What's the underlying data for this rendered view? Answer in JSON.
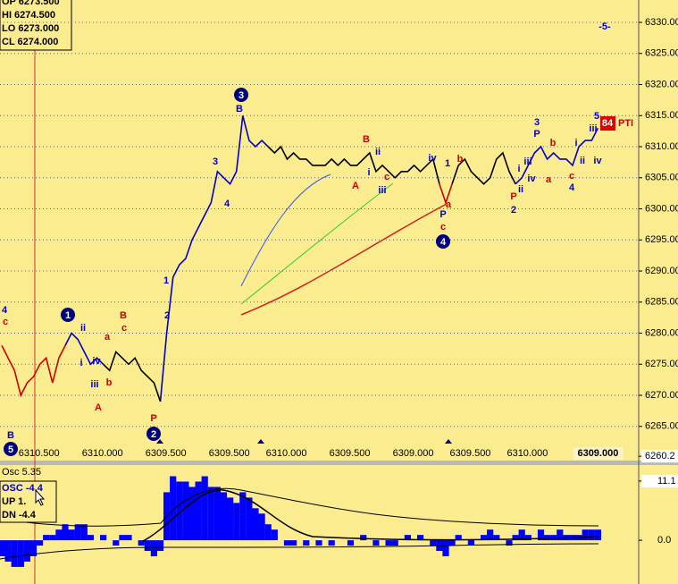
{
  "chart_data": [
    {
      "type": "line",
      "categories": [
        null,
        null,
        null,
        null,
        null,
        null,
        null,
        "6310.500",
        null,
        null,
        null,
        null,
        null,
        null,
        null,
        null,
        null,
        "6310.000",
        null,
        null,
        null,
        null,
        null,
        null,
        null,
        null,
        null,
        "6309.500",
        null,
        null,
        null,
        null,
        null,
        null,
        null,
        null,
        null,
        "6309.500",
        null,
        null,
        null,
        null,
        null,
        null,
        null,
        null,
        "6310.000",
        null,
        null,
        null,
        null,
        null,
        null,
        null,
        null,
        null,
        "6309.500",
        null,
        null,
        null,
        null,
        null,
        null,
        null,
        null,
        null,
        "6309.000",
        null,
        null,
        null,
        null,
        null,
        null,
        null,
        null,
        "6309.500",
        null,
        null,
        null,
        null,
        null,
        null,
        null,
        null,
        "6310.000",
        null,
        null,
        null,
        null,
        null,
        null,
        null,
        null,
        null,
        "6309.000"
      ],
      "series": [
        {
          "color": "#cc0000",
          "values": [
            6278,
            6276,
            6274,
            6270,
            6272,
            6273,
            6275,
            6276,
            6272,
            6276,
            6278,
            null,
            null,
            null,
            null,
            null,
            null,
            null,
            null,
            null,
            null,
            null,
            null,
            null,
            null,
            null,
            null,
            null,
            null,
            null,
            null,
            null,
            null,
            null,
            null,
            null,
            null,
            null,
            null,
            null,
            null,
            null,
            null,
            null,
            null,
            null,
            null,
            null,
            null,
            null,
            null,
            null,
            null,
            null,
            null,
            null,
            null,
            null,
            null,
            null,
            null,
            null,
            null,
            null,
            null,
            null,
            null,
            null,
            null,
            6304,
            6301,
            6304,
            null,
            null,
            null,
            null,
            null,
            null,
            null,
            null,
            null,
            null,
            null,
            null,
            null,
            null,
            null,
            null,
            null,
            null,
            null,
            null,
            null,
            null,
            null
          ]
        },
        {
          "color": "#0000cc",
          "values": [
            null,
            null,
            null,
            null,
            null,
            null,
            null,
            null,
            null,
            null,
            6278,
            6280,
            6279,
            6277,
            6275,
            6276,
            6275,
            null,
            null,
            null,
            null,
            null,
            null,
            null,
            null,
            6269,
            6280,
            6289,
            6291,
            6292,
            6295,
            6297,
            6299,
            6301,
            6306,
            6305,
            6304,
            6306,
            6315,
            6311,
            6310,
            6311,
            6310,
            null,
            null,
            null,
            null,
            null,
            null,
            null,
            null,
            null,
            null,
            null,
            null,
            null,
            null,
            null,
            null,
            null,
            null,
            null,
            null,
            null,
            null,
            null,
            null,
            null,
            null,
            null,
            null,
            null,
            null,
            null,
            null,
            null,
            null,
            null,
            null,
            null,
            null,
            6304,
            6305,
            6307,
            6309,
            6310,
            6308,
            6309,
            6308,
            6308,
            6307,
            6310,
            6311,
            6311,
            6313
          ]
        },
        {
          "color": "#000000",
          "values": [
            null,
            null,
            null,
            null,
            null,
            null,
            null,
            null,
            null,
            null,
            null,
            null,
            null,
            null,
            null,
            null,
            6275,
            6274,
            6277,
            6276,
            6275,
            6276,
            6274,
            6273,
            6272,
            6269,
            null,
            null,
            null,
            null,
            null,
            null,
            null,
            null,
            null,
            null,
            null,
            null,
            null,
            null,
            null,
            null,
            6310,
            6309,
            6310,
            6308,
            6309,
            6308,
            6308,
            6307,
            6307,
            6307,
            6308,
            6307,
            6308,
            6307,
            6307,
            6308,
            6309,
            6306,
            6307,
            6306,
            6305,
            6306,
            6306,
            6307,
            6306,
            6307,
            6308,
            6304,
            null,
            6304,
            6307,
            6308,
            6306,
            6305,
            6304,
            6305,
            6308,
            6309,
            6306,
            6304,
            null,
            null,
            null,
            null,
            null,
            null,
            null,
            null,
            null,
            null,
            null,
            null,
            null
          ]
        }
      ],
      "ylim": [
        6259.5,
        6333.6
      ],
      "yticks": [
        {
          "value": 6265,
          "label": "6265.00"
        },
        {
          "value": 6270,
          "label": "6270.00"
        },
        {
          "value": 6275,
          "label": "6275.00"
        },
        {
          "value": 6280,
          "label": "6280.00"
        },
        {
          "value": 6285,
          "label": "6285.00"
        },
        {
          "value": 6290,
          "label": "6290.00"
        },
        {
          "value": 6295,
          "label": "6295.00"
        },
        {
          "value": 6300,
          "label": "6300.00"
        },
        {
          "value": 6305,
          "label": "6305.00"
        },
        {
          "value": 6310,
          "label": "6310.00"
        },
        {
          "value": 6315,
          "label": "6315.00"
        },
        {
          "value": 6320,
          "label": "6320.00"
        },
        {
          "value": 6325,
          "label": "6325.00"
        },
        {
          "value": 6330,
          "label": "6330.00"
        },
        6260.2
      ],
      "grid": true,
      "info_box": [
        "OP 6273.500",
        "HI 6274.500",
        "LO 6273.000",
        "CL 6274.000"
      ],
      "badge": "84",
      "badge_label": "PTI",
      "wave_markers": [
        "1",
        "2",
        "3",
        "4",
        "5"
      ],
      "annotations": [
        {
          "text": "4",
          "color": "#0000cc"
        },
        {
          "text": "c",
          "color": "#cc0000"
        },
        {
          "text": "B",
          "color": "#0000cc"
        },
        {
          "text": "ii",
          "color": "#0000cc"
        },
        {
          "text": "i",
          "color": "#0000cc"
        },
        {
          "text": "iv",
          "color": "#0000cc"
        },
        {
          "text": "iii",
          "color": "#0000cc"
        },
        {
          "text": "a",
          "color": "#cc0000"
        },
        {
          "text": "B",
          "color": "#cc0000"
        },
        {
          "text": "c",
          "color": "#cc0000"
        },
        {
          "text": "b",
          "color": "#cc0000"
        },
        {
          "text": "A",
          "color": "#cc0000"
        },
        {
          "text": "P",
          "color": "#cc0000"
        },
        {
          "text": "1",
          "color": "#0000cc"
        },
        {
          "text": "2",
          "color": "#0000cc"
        },
        {
          "text": "3",
          "color": "#0000cc"
        },
        {
          "text": "4",
          "color": "#0000cc"
        },
        {
          "text": "B",
          "color": "#0000cc"
        },
        {
          "text": "B",
          "color": "#cc0000"
        },
        {
          "text": "ii",
          "color": "#0000cc"
        },
        {
          "text": "i",
          "color": "#0000cc"
        },
        {
          "text": "A",
          "color": "#cc0000"
        },
        {
          "text": "iii",
          "color": "#0000cc"
        },
        {
          "text": "c",
          "color": "#cc0000"
        },
        {
          "text": "iv",
          "color": "#0000cc"
        },
        {
          "text": "1",
          "color": "#0000cc"
        },
        {
          "text": "b",
          "color": "#cc0000"
        },
        {
          "text": "P",
          "color": "#0000cc"
        },
        {
          "text": "a",
          "color": "#cc0000"
        },
        {
          "text": "c",
          "color": "#cc0000"
        },
        {
          "text": "P",
          "color": "#cc0000"
        },
        {
          "text": "2",
          "color": "#0000cc"
        },
        {
          "text": "i",
          "color": "#0000cc"
        },
        {
          "text": "ii",
          "color": "#0000cc"
        },
        {
          "text": "iii",
          "color": "#0000cc"
        },
        {
          "text": "iv",
          "color": "#0000cc"
        },
        {
          "text": "3",
          "color": "#0000cc"
        },
        {
          "text": "P",
          "color": "#0000cc"
        },
        {
          "text": "b",
          "color": "#cc0000"
        },
        {
          "text": "a",
          "color": "#cc0000"
        },
        {
          "text": "c",
          "color": "#cc0000"
        },
        {
          "text": "4",
          "color": "#0000cc"
        },
        {
          "text": "5",
          "color": "#0000cc"
        },
        {
          "text": "iii",
          "color": "#0000cc"
        },
        {
          "text": "i",
          "color": "#0000cc"
        },
        {
          "text": "ii",
          "color": "#0000cc"
        },
        {
          "text": "iv",
          "color": "#0000cc"
        },
        {
          "text": "-5-",
          "color": "#0000cc"
        }
      ]
    },
    {
      "type": "histogram-bar",
      "title": "Osc 5.35",
      "readout": [
        "OSC -4.4",
        "UP 1.",
        "DN -4.4"
      ],
      "color": "#0000ff",
      "values": [
        -3,
        -4,
        -5,
        -5,
        -4,
        -3,
        -1,
        1,
        1,
        2,
        3,
        2,
        3,
        3,
        1,
        0,
        1,
        0,
        -1,
        1,
        1,
        0,
        -1,
        -2,
        -3,
        -2,
        9,
        12,
        11,
        11,
        10,
        11,
        12,
        10,
        10,
        9,
        8,
        7,
        9,
        8,
        6,
        5,
        3,
        2,
        0,
        -1,
        -1,
        0,
        -1,
        0,
        -1,
        0,
        -1,
        0,
        0,
        -1,
        0,
        1,
        0,
        -1,
        0,
        -1,
        -1,
        0,
        1,
        0,
        1,
        0,
        -1,
        -2,
        -3,
        -1,
        1,
        0,
        -1,
        0,
        1,
        2,
        1,
        0,
        -1,
        1,
        2,
        1,
        0,
        2,
        1,
        1,
        2,
        1,
        1,
        1,
        2,
        2,
        2
      ],
      "ylim": [
        -8.2,
        14.1
      ],
      "yticks": [
        11.1,
        {
          "value": 0,
          "label": "0.0"
        }
      ]
    }
  ]
}
